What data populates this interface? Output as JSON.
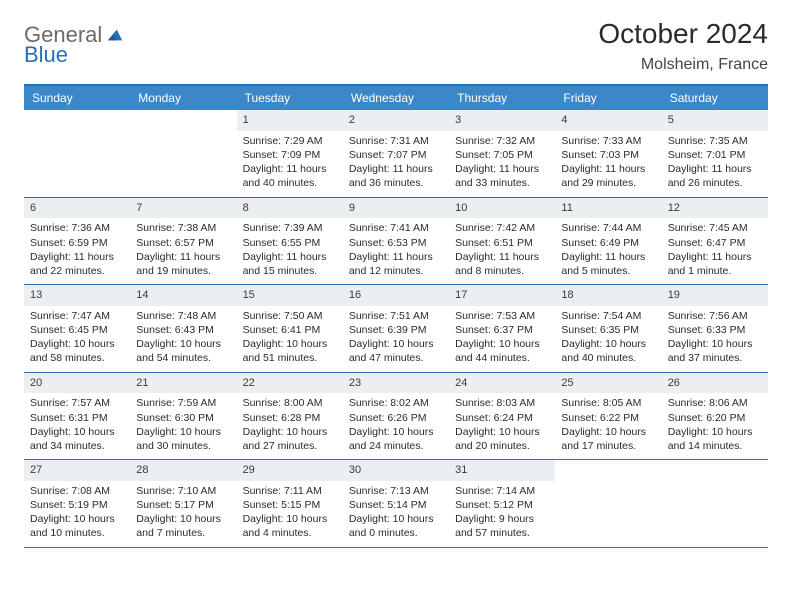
{
  "brand": {
    "general": "General",
    "blue": "Blue"
  },
  "title": "October 2024",
  "location": "Molsheim, France",
  "colors": {
    "header_bg": "#3b87c8",
    "border": "#2a6fb5",
    "daynum_bg": "#eceff1",
    "text": "#2b2b2b"
  },
  "weekdays": [
    "Sunday",
    "Monday",
    "Tuesday",
    "Wednesday",
    "Thursday",
    "Friday",
    "Saturday"
  ],
  "weeks": [
    [
      null,
      null,
      {
        "n": "1",
        "sr": "7:29 AM",
        "ss": "7:09 PM",
        "dl": "11 hours and 40 minutes."
      },
      {
        "n": "2",
        "sr": "7:31 AM",
        "ss": "7:07 PM",
        "dl": "11 hours and 36 minutes."
      },
      {
        "n": "3",
        "sr": "7:32 AM",
        "ss": "7:05 PM",
        "dl": "11 hours and 33 minutes."
      },
      {
        "n": "4",
        "sr": "7:33 AM",
        "ss": "7:03 PM",
        "dl": "11 hours and 29 minutes."
      },
      {
        "n": "5",
        "sr": "7:35 AM",
        "ss": "7:01 PM",
        "dl": "11 hours and 26 minutes."
      }
    ],
    [
      {
        "n": "6",
        "sr": "7:36 AM",
        "ss": "6:59 PM",
        "dl": "11 hours and 22 minutes."
      },
      {
        "n": "7",
        "sr": "7:38 AM",
        "ss": "6:57 PM",
        "dl": "11 hours and 19 minutes."
      },
      {
        "n": "8",
        "sr": "7:39 AM",
        "ss": "6:55 PM",
        "dl": "11 hours and 15 minutes."
      },
      {
        "n": "9",
        "sr": "7:41 AM",
        "ss": "6:53 PM",
        "dl": "11 hours and 12 minutes."
      },
      {
        "n": "10",
        "sr": "7:42 AM",
        "ss": "6:51 PM",
        "dl": "11 hours and 8 minutes."
      },
      {
        "n": "11",
        "sr": "7:44 AM",
        "ss": "6:49 PM",
        "dl": "11 hours and 5 minutes."
      },
      {
        "n": "12",
        "sr": "7:45 AM",
        "ss": "6:47 PM",
        "dl": "11 hours and 1 minute."
      }
    ],
    [
      {
        "n": "13",
        "sr": "7:47 AM",
        "ss": "6:45 PM",
        "dl": "10 hours and 58 minutes."
      },
      {
        "n": "14",
        "sr": "7:48 AM",
        "ss": "6:43 PM",
        "dl": "10 hours and 54 minutes."
      },
      {
        "n": "15",
        "sr": "7:50 AM",
        "ss": "6:41 PM",
        "dl": "10 hours and 51 minutes."
      },
      {
        "n": "16",
        "sr": "7:51 AM",
        "ss": "6:39 PM",
        "dl": "10 hours and 47 minutes."
      },
      {
        "n": "17",
        "sr": "7:53 AM",
        "ss": "6:37 PM",
        "dl": "10 hours and 44 minutes."
      },
      {
        "n": "18",
        "sr": "7:54 AM",
        "ss": "6:35 PM",
        "dl": "10 hours and 40 minutes."
      },
      {
        "n": "19",
        "sr": "7:56 AM",
        "ss": "6:33 PM",
        "dl": "10 hours and 37 minutes."
      }
    ],
    [
      {
        "n": "20",
        "sr": "7:57 AM",
        "ss": "6:31 PM",
        "dl": "10 hours and 34 minutes."
      },
      {
        "n": "21",
        "sr": "7:59 AM",
        "ss": "6:30 PM",
        "dl": "10 hours and 30 minutes."
      },
      {
        "n": "22",
        "sr": "8:00 AM",
        "ss": "6:28 PM",
        "dl": "10 hours and 27 minutes."
      },
      {
        "n": "23",
        "sr": "8:02 AM",
        "ss": "6:26 PM",
        "dl": "10 hours and 24 minutes."
      },
      {
        "n": "24",
        "sr": "8:03 AM",
        "ss": "6:24 PM",
        "dl": "10 hours and 20 minutes."
      },
      {
        "n": "25",
        "sr": "8:05 AM",
        "ss": "6:22 PM",
        "dl": "10 hours and 17 minutes."
      },
      {
        "n": "26",
        "sr": "8:06 AM",
        "ss": "6:20 PM",
        "dl": "10 hours and 14 minutes."
      }
    ],
    [
      {
        "n": "27",
        "sr": "7:08 AM",
        "ss": "5:19 PM",
        "dl": "10 hours and 10 minutes."
      },
      {
        "n": "28",
        "sr": "7:10 AM",
        "ss": "5:17 PM",
        "dl": "10 hours and 7 minutes."
      },
      {
        "n": "29",
        "sr": "7:11 AM",
        "ss": "5:15 PM",
        "dl": "10 hours and 4 minutes."
      },
      {
        "n": "30",
        "sr": "7:13 AM",
        "ss": "5:14 PM",
        "dl": "10 hours and 0 minutes."
      },
      {
        "n": "31",
        "sr": "7:14 AM",
        "ss": "5:12 PM",
        "dl": "9 hours and 57 minutes."
      },
      null,
      null
    ]
  ],
  "labels": {
    "sunrise": "Sunrise: ",
    "sunset": "Sunset: ",
    "daylight": "Daylight: "
  }
}
